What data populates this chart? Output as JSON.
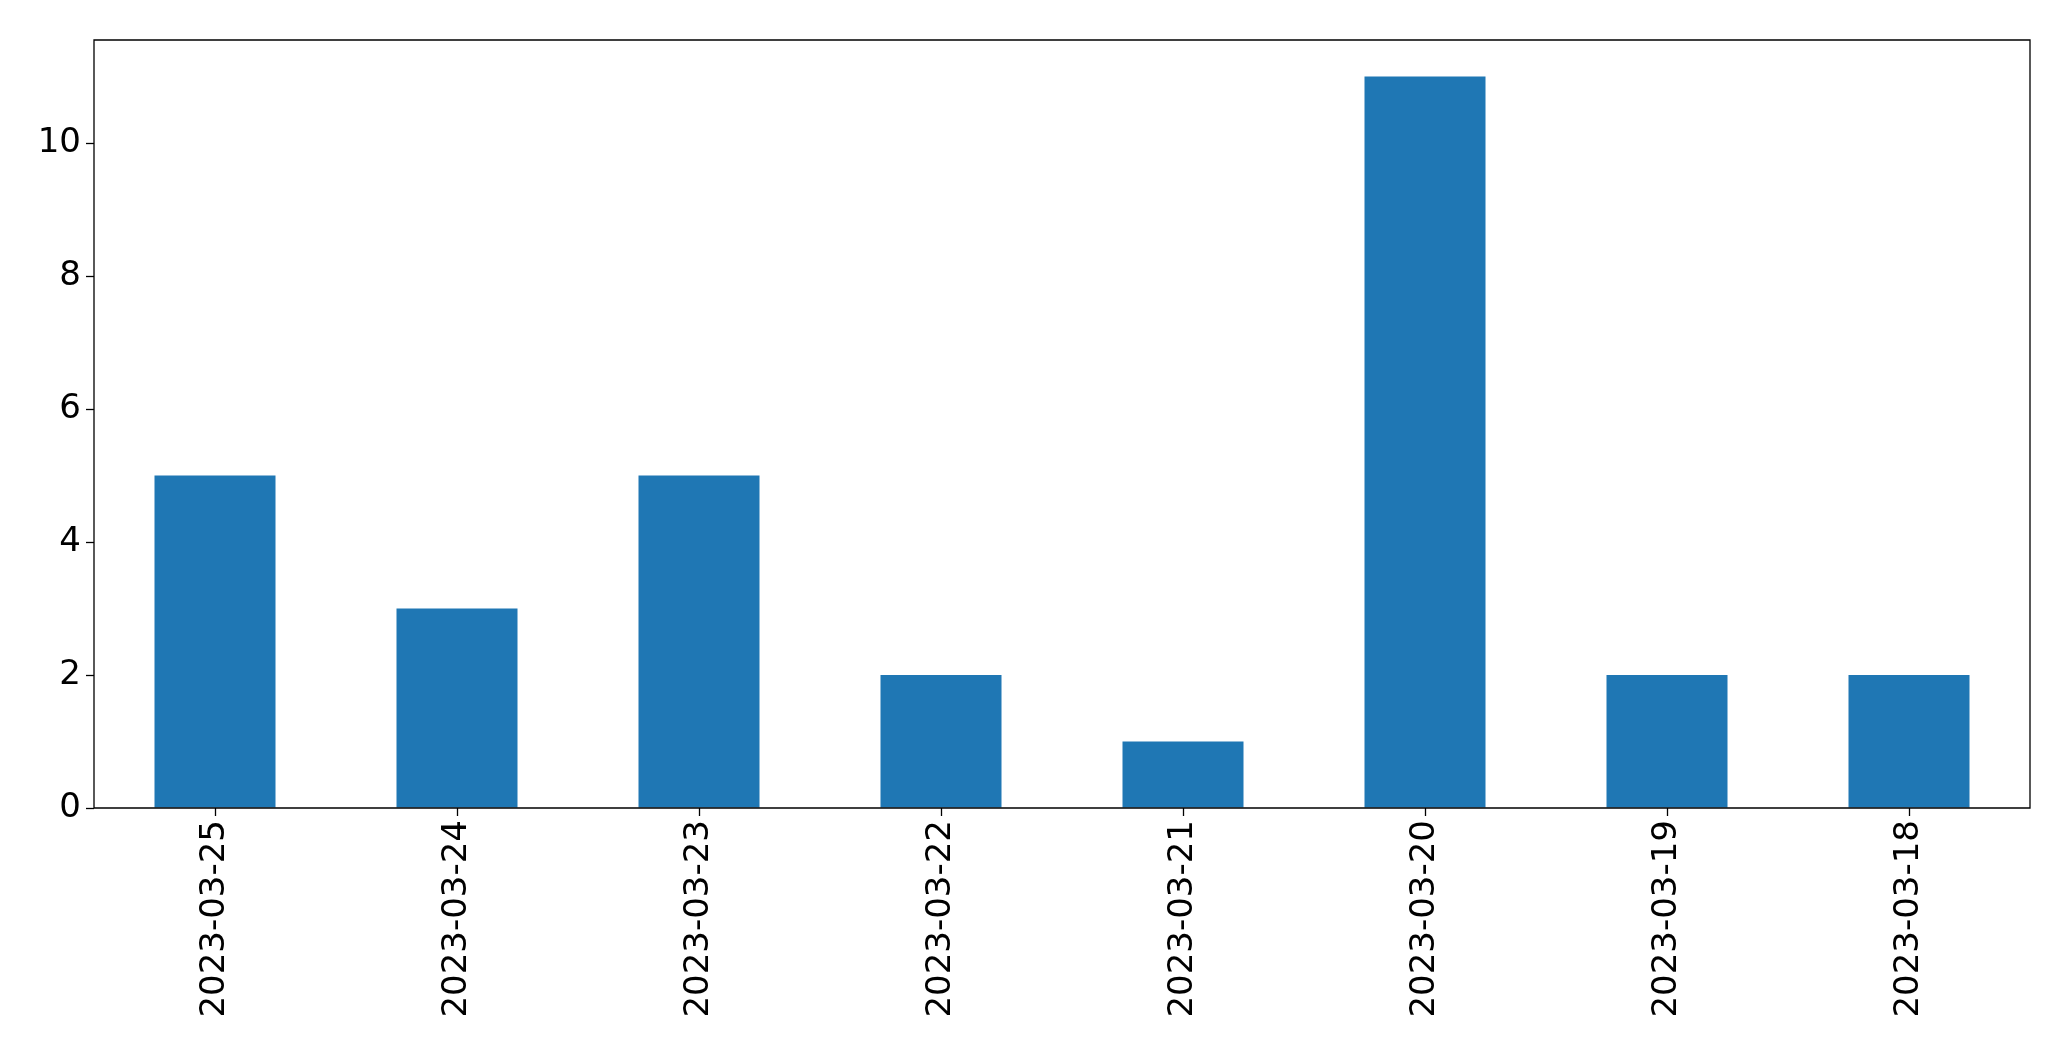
{
  "chart_data": {
    "type": "bar",
    "categories": [
      "2023-03-25",
      "2023-03-24",
      "2023-03-23",
      "2023-03-22",
      "2023-03-21",
      "2023-03-20",
      "2023-03-19",
      "2023-03-18"
    ],
    "values": [
      5,
      3,
      5,
      2,
      1,
      11,
      2,
      2
    ],
    "color": "#1f77b4",
    "ylim": [
      0,
      11.55
    ],
    "yticks": [
      0,
      2,
      4,
      6,
      8,
      10
    ],
    "grid": false
  }
}
